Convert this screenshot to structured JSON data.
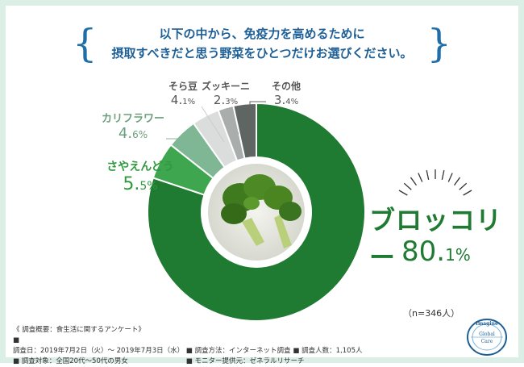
{
  "title": {
    "line1": "以下の中から、免疫力を高めるために",
    "line2": "摂取すべきだと思う野菜をひとつだけお選びください。"
  },
  "chart_data": {
    "type": "pie",
    "categories": [
      "ブロッコリー",
      "さやえんどう",
      "カリフラワー",
      "そら豆",
      "ズッキーニ",
      "その他"
    ],
    "values": [
      80.1,
      5.5,
      4.6,
      4.1,
      2.3,
      3.4
    ],
    "colors": [
      "#1f7a32",
      "#3ea64f",
      "#7fb795",
      "#dadddb",
      "#a9adab",
      "#5e6562"
    ],
    "labels": {
      "broccoli": {
        "name": "ブロッコリー",
        "pct_int": "80.",
        "pct_dec": "1%"
      },
      "saya": {
        "name": "さやえんどう",
        "pct_int": "5.",
        "pct_dec": "5%"
      },
      "cauli": {
        "name": "カリフラワー",
        "pct_int": "4.",
        "pct_dec": "6%"
      },
      "sora": {
        "name": "そら豆",
        "pct_int": "4.",
        "pct_dec": "1%"
      },
      "zucc": {
        "name": "ズッキーニ",
        "pct_int": "2.",
        "pct_dec": "3%"
      },
      "other": {
        "name": "その他",
        "pct_int": "3.",
        "pct_dec": "4%"
      }
    }
  },
  "sample_note": "（n=346人）",
  "footer": {
    "heading": "《 調査概要：食生活に関するアンケート》",
    "date": "調査日：2019年7月2日（火）～ 2019年7月3日（水）",
    "method": "調査方法：インターネット調査",
    "count": "調査人数：1,105人",
    "target": "調査対象：全国20代～50代の男女",
    "monitor": "モニター提供元：ゼネラルリサーチ"
  },
  "logo": {
    "top": "Imagine",
    "mid": "Global",
    "bottom": "Care"
  }
}
